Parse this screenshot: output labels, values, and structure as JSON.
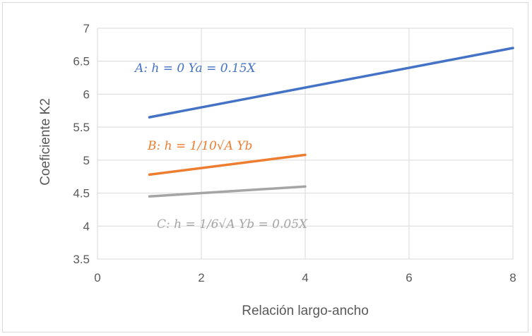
{
  "chart_data": {
    "type": "line",
    "title": "",
    "xlabel": "Relación largo-ancho",
    "ylabel": "Coeficiente K2",
    "xlim": [
      0,
      8
    ],
    "ylim": [
      3.5,
      7
    ],
    "x_ticks": [
      0,
      2,
      4,
      6,
      8
    ],
    "y_ticks": [
      3.5,
      4,
      4.5,
      5,
      5.5,
      6,
      6.5,
      7
    ],
    "grid": true,
    "legend": "none",
    "series": [
      {
        "color": "#4472c4",
        "x": [
          1,
          8
        ],
        "y": [
          5.65,
          6.7
        ]
      },
      {
        "color": "#ed7d31",
        "x": [
          1,
          4
        ],
        "y": [
          4.78,
          5.08
        ]
      },
      {
        "color": "#a5a5a5",
        "x": [
          1,
          4
        ],
        "y": [
          4.45,
          4.6
        ]
      }
    ],
    "annotations": [
      {
        "text": "A: h = 0   Ya = 0.15X",
        "color": "#4472c4"
      },
      {
        "text": "B: h = 1/10√A   Yb",
        "color": "#ed7d31"
      },
      {
        "text": "C: h = 1/6√A   Yb = 0.05X",
        "color": "#a5a5a5"
      }
    ]
  }
}
